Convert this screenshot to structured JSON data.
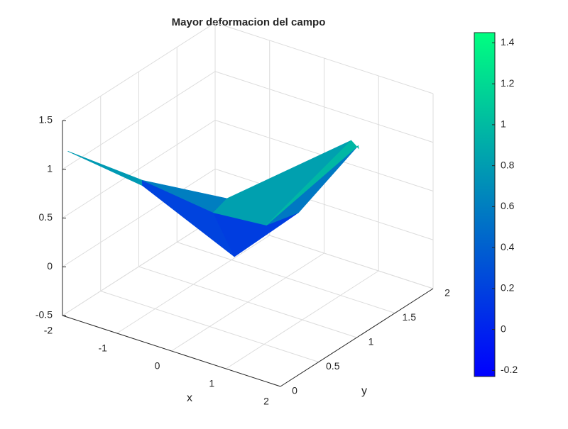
{
  "chart_data": {
    "type": "surface",
    "title": "Mayor deformacion del campo",
    "xlabel": "x",
    "ylabel": "y",
    "xlim": [
      -2,
      2
    ],
    "xticks": [
      -2,
      -1,
      0,
      1,
      2
    ],
    "ylim": [
      0,
      2
    ],
    "yticks": [
      0,
      0.5,
      1,
      1.5,
      2
    ],
    "zlim": [
      -0.5,
      1.5
    ],
    "zticks": [
      -0.5,
      0,
      0.5,
      1,
      1.5
    ],
    "grid": true,
    "colormap": [
      "#0000ff",
      "#00ff80"
    ],
    "clim": [
      -0.23,
      1.45
    ],
    "cticks": [
      -0.2,
      0,
      0.2,
      0.4,
      0.6,
      0.8,
      1,
      1.2,
      1.4
    ],
    "X": [
      [
        -2.0,
        -1.92,
        -0.47,
        0.4,
        0.78
      ],
      [
        -2.0,
        -1.84,
        -0.73,
        0.34,
        0.78
      ],
      [
        -2.0,
        -1.84,
        1.02,
        1.8,
        1.77
      ]
    ],
    "Y": [
      [
        0.07,
        0.99,
        1.16,
        1.38,
        1.89
      ],
      [
        0.07,
        0.93,
        1.07,
        1.0,
        1.89
      ],
      [
        0.07,
        0.93,
        0.0,
        1.07,
        1.19
      ]
    ],
    "Z": [
      [
        1.15,
        0.35,
        -0.2,
        0.3,
        0.8
      ],
      [
        1.15,
        0.45,
        0.25,
        0.35,
        0.8
      ],
      [
        1.15,
        0.45,
        1.25,
        1.45,
        1.3
      ]
    ]
  }
}
